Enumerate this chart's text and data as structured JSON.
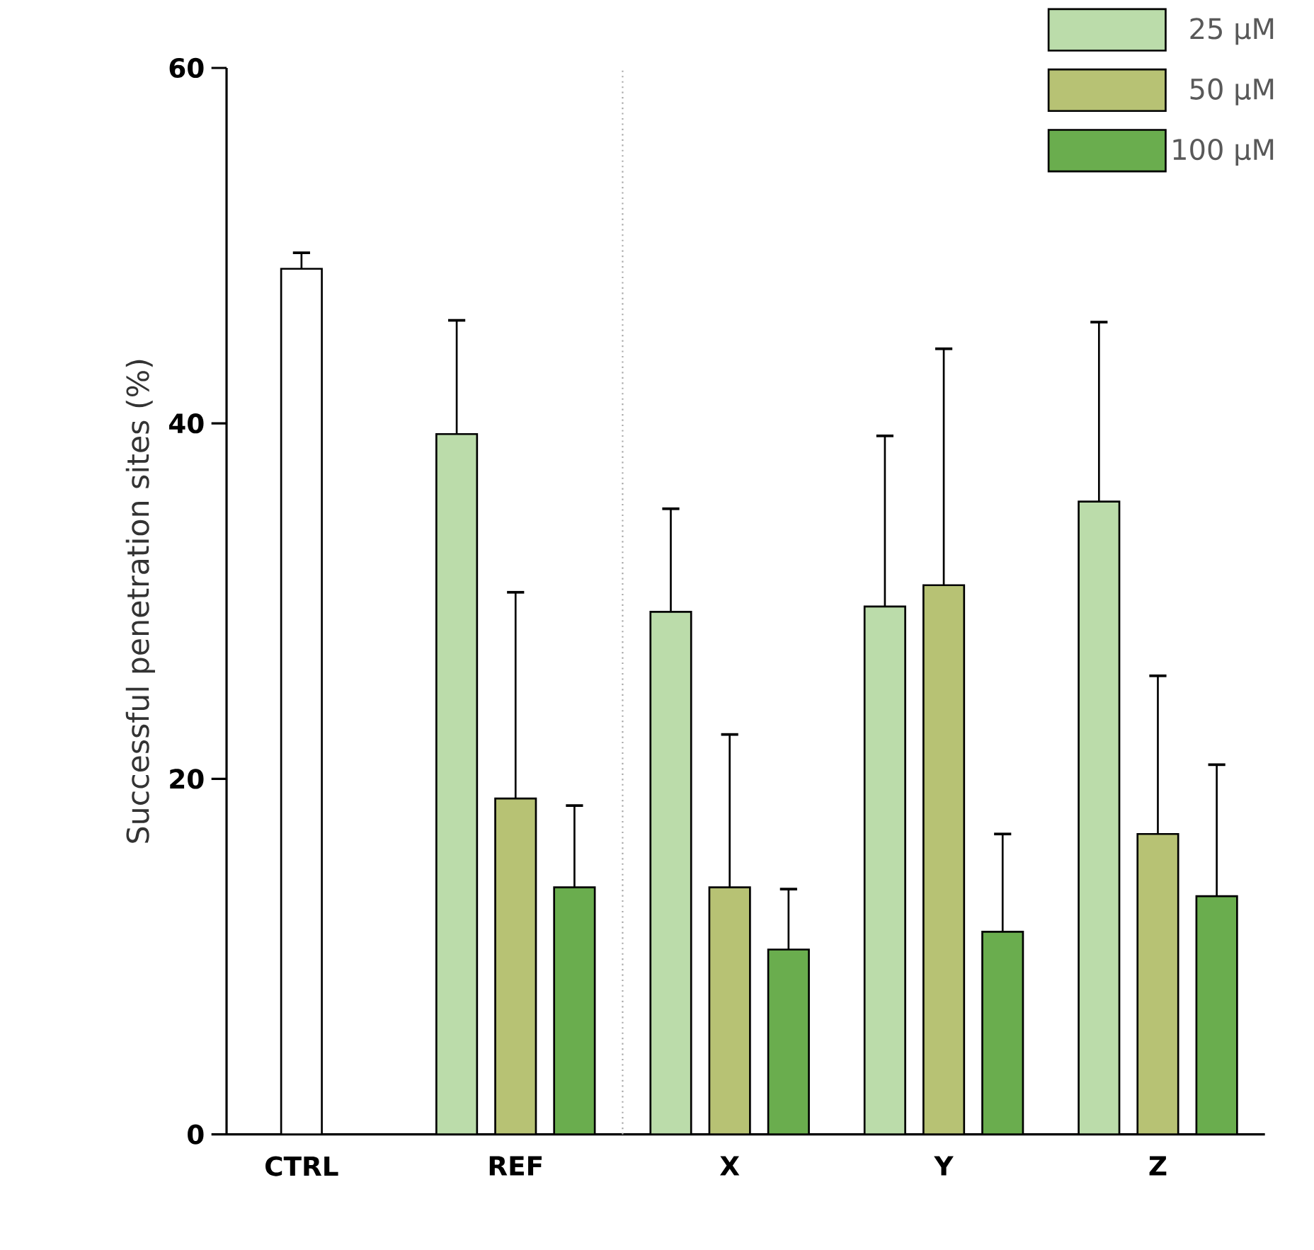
{
  "chart_data": {
    "type": "bar",
    "ylabel": "Successful penetration sites (%)",
    "categories": [
      "CTRL",
      "REF",
      "X",
      "Y",
      "Z"
    ],
    "ylim": [
      0,
      60
    ],
    "yticks": [
      0,
      20,
      40,
      60
    ],
    "legend": "top right",
    "series": [
      {
        "color": "#ffffff",
        "values": [
          48.7,
          null,
          null,
          null,
          null
        ],
        "errors": [
          [
            48.7,
            49.6
          ],
          null,
          null,
          null,
          null
        ]
      },
      {
        "name": "25 µM",
        "color": "#bbdcaa",
        "values": [
          null,
          39.4,
          29.4,
          29.7,
          35.6
        ],
        "errors": [
          null,
          [
            39.4,
            45.8
          ],
          [
            29.4,
            35.2
          ],
          [
            29.7,
            39.3
          ],
          [
            35.6,
            45.7
          ]
        ]
      },
      {
        "name": "50 µM",
        "color": "#b7c274",
        "values": [
          null,
          18.9,
          13.9,
          30.9,
          16.9
        ],
        "errors": [
          null,
          [
            18.9,
            30.5
          ],
          [
            13.9,
            22.5
          ],
          [
            30.9,
            44.2
          ],
          [
            16.9,
            25.8
          ]
        ]
      },
      {
        "name": "100 µM",
        "color": "#6aad4e",
        "values": [
          null,
          13.9,
          10.4,
          11.4,
          13.4
        ],
        "errors": [
          null,
          [
            13.9,
            18.5
          ],
          [
            10.4,
            13.8
          ],
          [
            11.4,
            16.9
          ],
          [
            13.4,
            20.8
          ]
        ]
      }
    ]
  }
}
